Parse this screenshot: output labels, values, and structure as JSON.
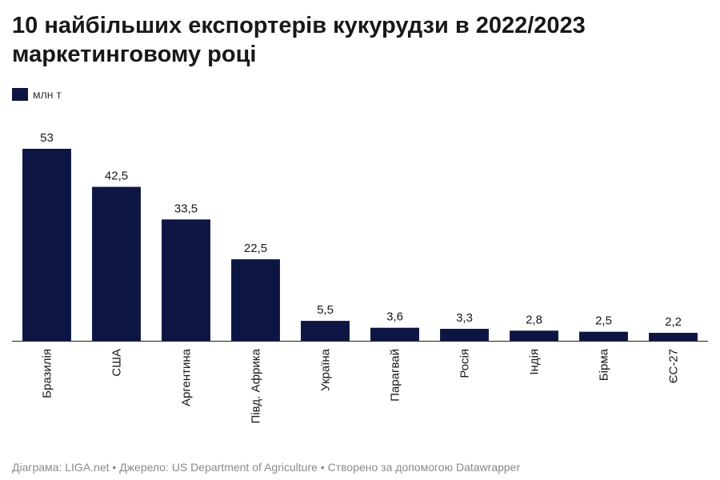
{
  "header": {
    "title": "10 найбільших експортерів кукурудзи в 2022/2023 маркетинговому році"
  },
  "legend": {
    "label": "млн т"
  },
  "colors": {
    "bar": "#0d1642",
    "axis": "#222222",
    "text": "#181818"
  },
  "chart_data": {
    "type": "bar",
    "title": "10 найбільших експортерів кукурудзи в 2022/2023 маркетинговому році",
    "categories": [
      "Бразилія",
      "США",
      "Аргентина",
      "Півд. Африка",
      "Україна",
      "Парагвай",
      "Росія",
      "Індія",
      "Бірма",
      "ЄС-27"
    ],
    "values": [
      53,
      42.5,
      33.5,
      22.5,
      5.5,
      3.6,
      3.3,
      2.8,
      2.5,
      2.2
    ],
    "value_labels": [
      "53",
      "42,5",
      "33,5",
      "22,5",
      "5,5",
      "3,6",
      "3,3",
      "2,8",
      "2,5",
      "2,2"
    ],
    "series_name": "млн т",
    "xlabel": "",
    "ylabel": "",
    "ylim": [
      0,
      53
    ],
    "grid": false,
    "legend_position": "top-left"
  },
  "footer": {
    "chart_credit": "Діаграма: LIGA.net",
    "source": "Джерело: US Department of Agriculture",
    "tool": "Створено за допомогою Datawrapper",
    "separator": " • "
  }
}
